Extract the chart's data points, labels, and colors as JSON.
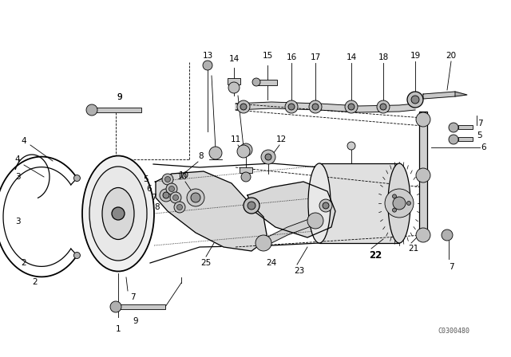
{
  "bg_color": "#ffffff",
  "line_color": "#000000",
  "watermark": "C0300480",
  "figsize": [
    6.4,
    4.48
  ],
  "dpi": 100
}
